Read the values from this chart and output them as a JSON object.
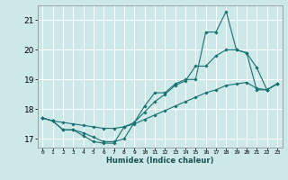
{
  "title": "",
  "xlabel": "Humidex (Indice chaleur)",
  "ylabel": "",
  "background_color": "#cce8e8",
  "grid_color": "#ffffff",
  "line_color": "#1a7070",
  "xlim": [
    -0.5,
    23.5
  ],
  "ylim": [
    16.7,
    21.5
  ],
  "xtick_labels": [
    "0",
    "1",
    "2",
    "3",
    "4",
    "5",
    "6",
    "7",
    "8",
    "9",
    "10",
    "11",
    "12",
    "13",
    "14",
    "15",
    "16",
    "17",
    "18",
    "19",
    "20",
    "21",
    "22",
    "23"
  ],
  "ytick_labels": [
    "17",
    "18",
    "19",
    "20",
    "21"
  ],
  "ytick_values": [
    17,
    18,
    19,
    20,
    21
  ],
  "series1_x": [
    0,
    1,
    2,
    3,
    4,
    5,
    6,
    7,
    8,
    9,
    10,
    11,
    12,
    13,
    14,
    15,
    16,
    17,
    18,
    19,
    20,
    21,
    22,
    23
  ],
  "series1_y": [
    17.7,
    17.6,
    17.3,
    17.3,
    17.1,
    16.9,
    16.85,
    16.85,
    17.4,
    17.55,
    18.1,
    18.55,
    18.55,
    18.85,
    19.0,
    19.0,
    20.6,
    20.6,
    21.3,
    20.0,
    19.9,
    19.4,
    18.65,
    18.85
  ],
  "series2_x": [
    0,
    1,
    2,
    3,
    4,
    5,
    6,
    7,
    8,
    9,
    10,
    11,
    12,
    13,
    14,
    15,
    16,
    17,
    18,
    19,
    20,
    21,
    22,
    23
  ],
  "series2_y": [
    17.7,
    17.6,
    17.3,
    17.3,
    17.2,
    17.05,
    16.9,
    16.9,
    17.0,
    17.55,
    17.9,
    18.25,
    18.5,
    18.8,
    18.95,
    19.45,
    19.45,
    19.8,
    20.0,
    20.0,
    19.9,
    18.65,
    18.65,
    18.85
  ],
  "series3_x": [
    0,
    1,
    2,
    3,
    4,
    5,
    6,
    7,
    8,
    9,
    10,
    11,
    12,
    13,
    14,
    15,
    16,
    17,
    18,
    19,
    20,
    21,
    22,
    23
  ],
  "series3_y": [
    17.7,
    17.6,
    17.55,
    17.5,
    17.45,
    17.4,
    17.35,
    17.35,
    17.4,
    17.5,
    17.65,
    17.8,
    17.95,
    18.1,
    18.25,
    18.4,
    18.55,
    18.65,
    18.8,
    18.85,
    18.9,
    18.7,
    18.65,
    18.85
  ],
  "xlabel_fontsize": 6.0,
  "xlabel_fontweight": "bold",
  "xlabel_color": "#1a5050",
  "ytick_fontsize": 6.5,
  "xtick_fontsize": 4.5,
  "marker_size": 1.8,
  "line_width": 0.8
}
